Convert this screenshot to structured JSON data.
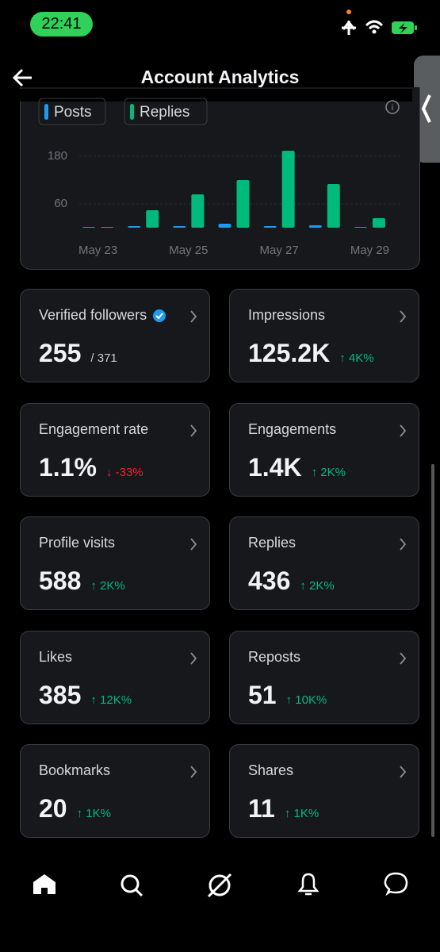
{
  "status_bar": {
    "time": "22:41"
  },
  "header": {
    "title": "Account Analytics"
  },
  "chart_data": {
    "type": "bar",
    "legend": [
      "Posts",
      "Replies"
    ],
    "categories": [
      "May 23",
      null,
      "May 25",
      null,
      "May 27",
      null,
      "May 29"
    ],
    "series": [
      {
        "name": "Posts",
        "color": "#1d9bf0",
        "values": [
          2,
          4,
          4,
          10,
          4,
          6,
          2
        ]
      },
      {
        "name": "Replies",
        "color": "#00ba7c",
        "values": [
          2,
          44,
          84,
          120,
          194,
          110,
          24
        ]
      }
    ],
    "ylim": [
      0,
      200
    ],
    "yticks": [
      60,
      180
    ],
    "grid": true
  },
  "cards": [
    {
      "label": "Verified followers",
      "value": "255",
      "sub": "/ 371"
    },
    {
      "label": "Impressions",
      "value": "125.2K",
      "change": "↑ 4K%",
      "color": "#00ba7c"
    },
    {
      "label": "Engagement rate",
      "value": "1.1%",
      "change": "↓ -33%",
      "color": "#f4212e"
    },
    {
      "label": "Engagements",
      "value": "1.4K",
      "change": "↑ 2K%",
      "color": "#00ba7c"
    },
    {
      "label": "Profile visits",
      "value": "588",
      "change": "↑ 2K%",
      "color": "#00ba7c"
    },
    {
      "label": "Replies",
      "value": "436",
      "change": "↑ 2K%",
      "color": "#00ba7c"
    },
    {
      "label": "Likes",
      "value": "385",
      "change": "↑ 12K%",
      "color": "#00ba7c"
    },
    {
      "label": "Reposts",
      "value": "51",
      "change": "↑ 10K%",
      "color": "#00ba7c"
    },
    {
      "label": "Bookmarks",
      "value": "20",
      "change": "↑ 1K%",
      "color": "#00ba7c"
    },
    {
      "label": "Shares",
      "value": "11",
      "change": "↑ 1K%",
      "color": "#00ba7c"
    }
  ]
}
